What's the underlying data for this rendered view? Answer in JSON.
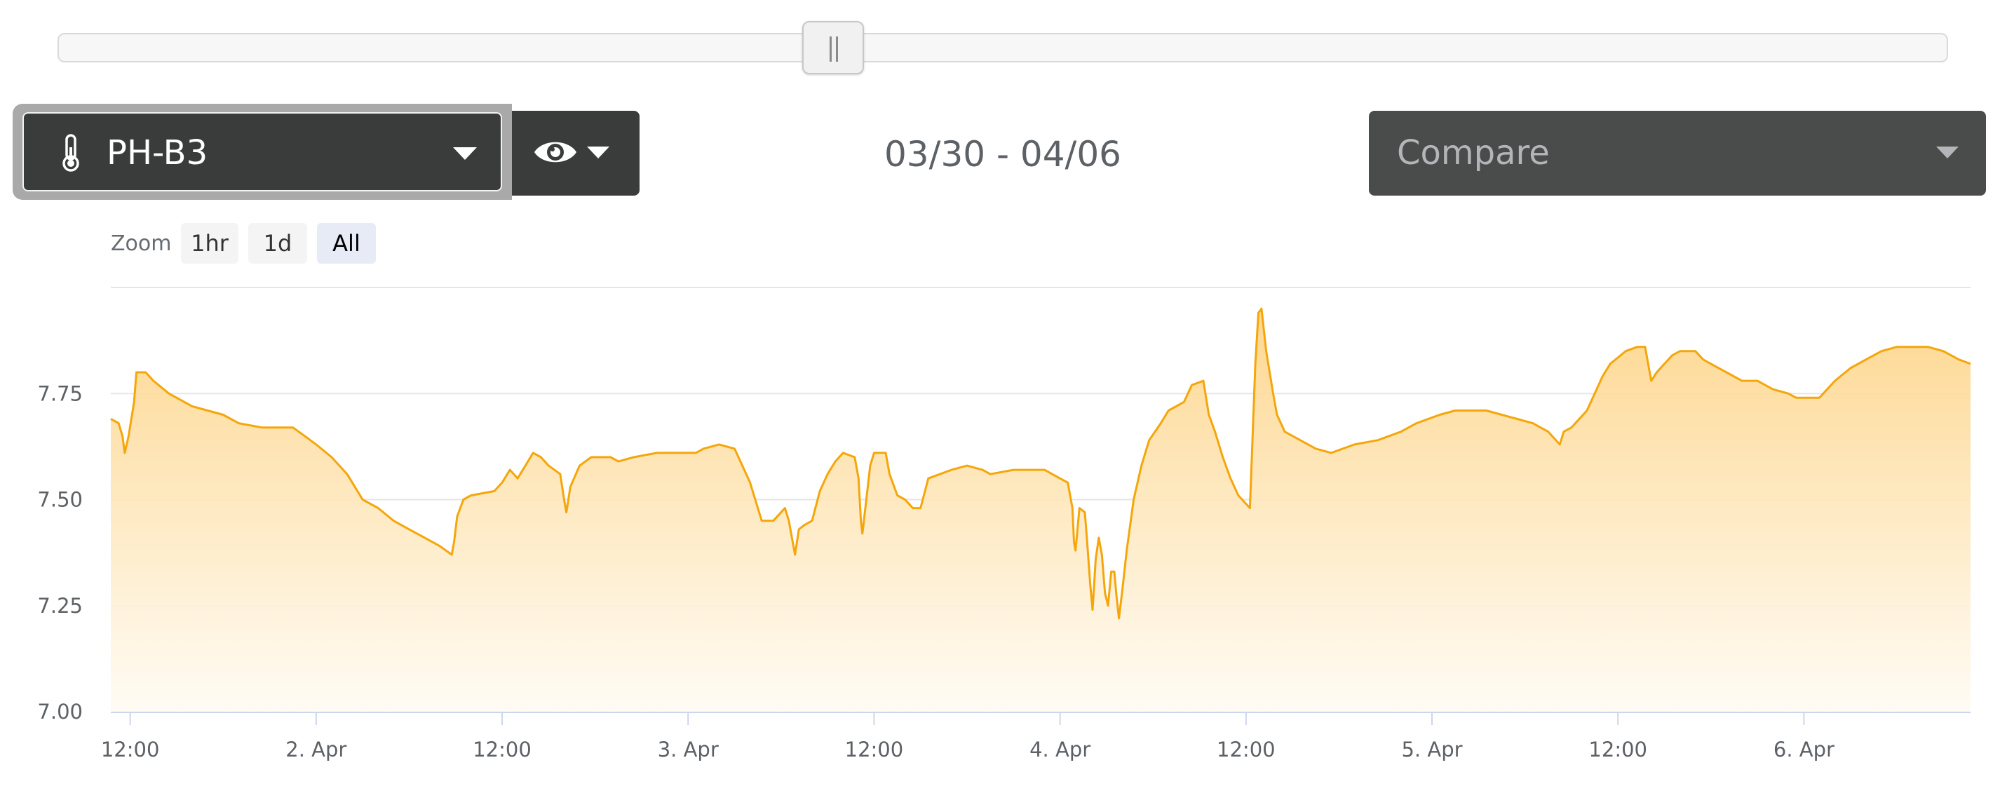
{
  "sensor_select": {
    "label": "PH-B3",
    "icon": "thermometer-icon"
  },
  "visibility_toggle": {
    "icon": "eye-icon"
  },
  "date_range": "03/30 - 04/06",
  "compare_select": {
    "placeholder": "Compare"
  },
  "zoom": {
    "label": "Zoom",
    "buttons": [
      "1hr",
      "1d",
      "All"
    ],
    "active": "All"
  },
  "colors": {
    "series_line": "#f5a60a",
    "area_top": "#fdd58a",
    "area_bottom": "#fffbf3",
    "control_dark": "#3a3b3b"
  },
  "chart_data": {
    "type": "area",
    "title": "",
    "xlabel": "",
    "ylabel": "",
    "ylim": [
      7.0,
      8.0
    ],
    "y_ticks": [
      "7.00",
      "7.25",
      "7.50",
      "7.75"
    ],
    "x_range": [
      "03/30 11:00",
      "04/06 20:00"
    ],
    "x_ticks": [
      {
        "label": "12:00",
        "hour": 12
      },
      {
        "label": "2. Apr",
        "hour": 36
      },
      {
        "label": "12:00",
        "hour": 60
      },
      {
        "label": "3. Apr",
        "hour": 84
      },
      {
        "label": "12:00",
        "hour": 108
      },
      {
        "label": "4. Apr",
        "hour": 132
      },
      {
        "label": "12:00",
        "hour": 156
      },
      {
        "label": "5. Apr",
        "hour": 180
      },
      {
        "label": "12:00",
        "hour": 204
      },
      {
        "label": "6. Apr",
        "hour": 228
      }
    ],
    "grid": true,
    "legend": "none",
    "series": [
      {
        "points": [
          [
            9.5,
            7.69
          ],
          [
            10.5,
            7.68
          ],
          [
            11.0,
            7.65
          ],
          [
            11.3,
            7.61
          ],
          [
            11.8,
            7.65
          ],
          [
            12.5,
            7.73
          ],
          [
            12.8,
            7.8
          ],
          [
            14.0,
            7.8
          ],
          [
            15.0,
            7.78
          ],
          [
            17.0,
            7.75
          ],
          [
            20.0,
            7.72
          ],
          [
            22.0,
            7.71
          ],
          [
            24.0,
            7.7
          ],
          [
            26.0,
            7.68
          ],
          [
            29.0,
            7.67
          ],
          [
            33.0,
            7.67
          ],
          [
            34.5,
            7.65
          ],
          [
            36.0,
            7.63
          ],
          [
            38.0,
            7.6
          ],
          [
            40.0,
            7.56
          ],
          [
            42.0,
            7.5
          ],
          [
            44.0,
            7.48
          ],
          [
            46.0,
            7.45
          ],
          [
            48.0,
            7.43
          ],
          [
            50.0,
            7.41
          ],
          [
            52.0,
            7.39
          ],
          [
            53.5,
            7.37
          ],
          [
            53.8,
            7.4
          ],
          [
            54.2,
            7.46
          ],
          [
            55.0,
            7.5
          ],
          [
            56.0,
            7.51
          ],
          [
            59.0,
            7.52
          ],
          [
            60.0,
            7.54
          ],
          [
            61.0,
            7.57
          ],
          [
            62.0,
            7.55
          ],
          [
            63.0,
            7.58
          ],
          [
            64.0,
            7.61
          ],
          [
            65.0,
            7.6
          ],
          [
            66.0,
            7.58
          ],
          [
            67.5,
            7.56
          ],
          [
            68.0,
            7.5
          ],
          [
            68.3,
            7.47
          ],
          [
            68.8,
            7.53
          ],
          [
            70.0,
            7.58
          ],
          [
            71.5,
            7.6
          ],
          [
            74.0,
            7.6
          ],
          [
            75.0,
            7.59
          ],
          [
            77.0,
            7.6
          ],
          [
            80.0,
            7.61
          ],
          [
            85.0,
            7.61
          ],
          [
            86.0,
            7.62
          ],
          [
            88.0,
            7.63
          ],
          [
            90.0,
            7.62
          ],
          [
            91.0,
            7.58
          ],
          [
            92.0,
            7.54
          ],
          [
            93.0,
            7.48
          ],
          [
            93.5,
            7.45
          ],
          [
            95.0,
            7.45
          ],
          [
            96.0,
            7.47
          ],
          [
            96.5,
            7.48
          ],
          [
            97.0,
            7.45
          ],
          [
            97.5,
            7.4
          ],
          [
            97.8,
            7.37
          ],
          [
            98.3,
            7.43
          ],
          [
            99.0,
            7.44
          ],
          [
            100.0,
            7.45
          ],
          [
            101.0,
            7.52
          ],
          [
            102.0,
            7.56
          ],
          [
            103.0,
            7.59
          ],
          [
            104.0,
            7.61
          ],
          [
            105.5,
            7.6
          ],
          [
            106.0,
            7.55
          ],
          [
            106.3,
            7.45
          ],
          [
            106.5,
            7.42
          ],
          [
            107.0,
            7.5
          ],
          [
            107.5,
            7.58
          ],
          [
            108.0,
            7.61
          ],
          [
            109.5,
            7.61
          ],
          [
            110.0,
            7.56
          ],
          [
            111.0,
            7.51
          ],
          [
            112.0,
            7.5
          ],
          [
            113.0,
            7.48
          ],
          [
            114.0,
            7.48
          ],
          [
            115.0,
            7.55
          ],
          [
            116.5,
            7.56
          ],
          [
            118.0,
            7.57
          ],
          [
            120.0,
            7.58
          ],
          [
            122.0,
            7.57
          ],
          [
            123.0,
            7.56
          ],
          [
            126.0,
            7.57
          ],
          [
            130.0,
            7.57
          ],
          [
            132.0,
            7.55
          ],
          [
            133.0,
            7.54
          ],
          [
            133.6,
            7.48
          ],
          [
            133.8,
            7.4
          ],
          [
            134.0,
            7.38
          ],
          [
            134.5,
            7.48
          ],
          [
            135.2,
            7.47
          ],
          [
            135.5,
            7.4
          ],
          [
            135.9,
            7.3
          ],
          [
            136.2,
            7.24
          ],
          [
            136.6,
            7.36
          ],
          [
            137.0,
            7.41
          ],
          [
            137.4,
            7.37
          ],
          [
            137.8,
            7.28
          ],
          [
            138.2,
            7.25
          ],
          [
            138.6,
            7.33
          ],
          [
            139.0,
            7.33
          ],
          [
            139.3,
            7.27
          ],
          [
            139.6,
            7.22
          ],
          [
            140.0,
            7.28
          ],
          [
            140.6,
            7.38
          ],
          [
            141.5,
            7.5
          ],
          [
            142.5,
            7.58
          ],
          [
            143.5,
            7.64
          ],
          [
            145.0,
            7.68
          ],
          [
            146.0,
            7.71
          ],
          [
            148.0,
            7.73
          ],
          [
            149.0,
            7.77
          ],
          [
            150.5,
            7.78
          ],
          [
            151.2,
            7.7
          ],
          [
            152.0,
            7.66
          ],
          [
            153.0,
            7.6
          ],
          [
            154.0,
            7.55
          ],
          [
            155.0,
            7.51
          ],
          [
            156.0,
            7.49
          ],
          [
            156.5,
            7.48
          ],
          [
            157.2,
            7.82
          ],
          [
            157.6,
            7.94
          ],
          [
            158.0,
            7.95
          ],
          [
            158.6,
            7.85
          ],
          [
            159.5,
            7.75
          ],
          [
            160.0,
            7.7
          ],
          [
            161.0,
            7.66
          ],
          [
            163.0,
            7.64
          ],
          [
            165.0,
            7.62
          ],
          [
            167.0,
            7.61
          ],
          [
            170.0,
            7.63
          ],
          [
            173.0,
            7.64
          ],
          [
            176.0,
            7.66
          ],
          [
            178.0,
            7.68
          ],
          [
            181.0,
            7.7
          ],
          [
            183.0,
            7.71
          ],
          [
            187.0,
            7.71
          ],
          [
            189.0,
            7.7
          ],
          [
            191.0,
            7.69
          ],
          [
            193.0,
            7.68
          ],
          [
            195.0,
            7.66
          ],
          [
            196.5,
            7.63
          ],
          [
            197.0,
            7.66
          ],
          [
            198.0,
            7.67
          ],
          [
            200.0,
            7.71
          ],
          [
            201.0,
            7.75
          ],
          [
            202.0,
            7.79
          ],
          [
            203.0,
            7.82
          ],
          [
            205.0,
            7.85
          ],
          [
            206.5,
            7.86
          ],
          [
            207.5,
            7.86
          ],
          [
            208.3,
            7.78
          ],
          [
            209.0,
            7.8
          ],
          [
            210.0,
            7.82
          ],
          [
            211.0,
            7.84
          ],
          [
            212.0,
            7.85
          ],
          [
            214.0,
            7.85
          ],
          [
            215.0,
            7.83
          ],
          [
            216.0,
            7.82
          ],
          [
            218.0,
            7.8
          ],
          [
            220.0,
            7.78
          ],
          [
            222.0,
            7.78
          ],
          [
            224.0,
            7.76
          ],
          [
            226.0,
            7.75
          ],
          [
            227.0,
            7.74
          ],
          [
            230.0,
            7.74
          ],
          [
            232.0,
            7.78
          ],
          [
            234.0,
            7.81
          ],
          [
            236.0,
            7.83
          ],
          [
            238.0,
            7.85
          ],
          [
            240.0,
            7.86
          ],
          [
            242.0,
            7.86
          ],
          [
            244.0,
            7.86
          ],
          [
            246.0,
            7.85
          ],
          [
            248.0,
            7.83
          ],
          [
            249.5,
            7.82
          ]
        ]
      }
    ]
  }
}
